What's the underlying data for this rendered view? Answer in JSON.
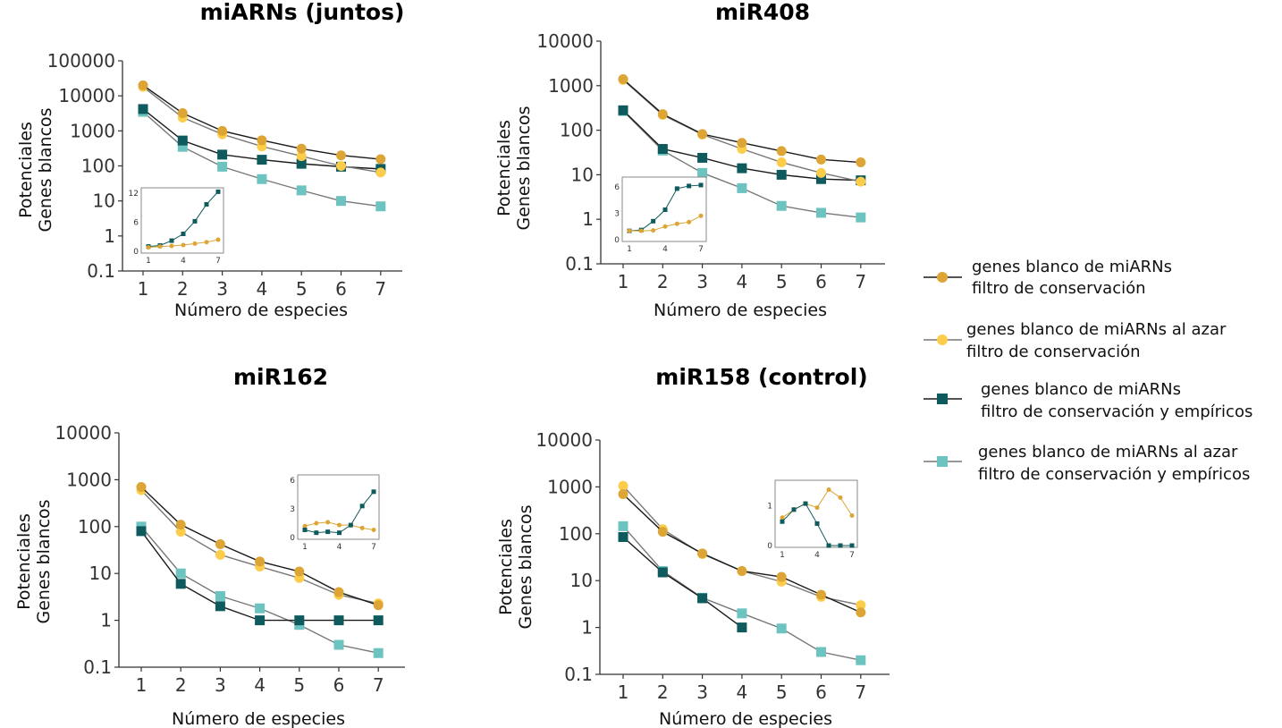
{
  "colors": {
    "series1": "#dda535",
    "series2": "#fbcd4b",
    "series3": "#0e5a5c",
    "series4": "#6cc3c0",
    "axis": "#333333"
  },
  "legend": {
    "items": [
      {
        "series": "series1",
        "marker": "circle",
        "line1": "genes blanco de miARNs",
        "line2": "filtro de conservación"
      },
      {
        "series": "series2",
        "marker": "circle",
        "line1": "genes blanco de miARNs al azar",
        "line2": "filtro de conservación"
      },
      {
        "series": "series3",
        "marker": "square",
        "line1": "genes blanco de miARNs",
        "line2": "filtro de conservación y empíricos"
      },
      {
        "series": "series4",
        "marker": "square",
        "line1": "genes blanco de miARNs al azar",
        "line2": "filtro de conservación y empíricos"
      }
    ]
  },
  "chart_data": [
    {
      "type": "line",
      "title": "miARNs (juntos)",
      "xlabel": "Número de especies",
      "ylabel": [
        "Potenciales",
        "Genes blancos"
      ],
      "yscale": "log",
      "ylim": [
        0.1,
        100000
      ],
      "yticks": [
        "0.1",
        "1",
        "10",
        "100",
        "1000",
        "10000",
        "100000"
      ],
      "x": [
        1,
        2,
        3,
        4,
        5,
        6,
        7
      ],
      "series": [
        {
          "color": "series1",
          "marker": "circle",
          "values": [
            20000,
            3200,
            1000,
            540,
            310,
            200,
            155
          ]
        },
        {
          "color": "series2",
          "marker": "circle",
          "values": [
            18000,
            2400,
            800,
            360,
            190,
            100,
            65
          ]
        },
        {
          "color": "series3",
          "marker": "square",
          "values": [
            4200,
            530,
            210,
            150,
            115,
            95,
            82
          ]
        },
        {
          "color": "series4",
          "marker": "square",
          "values": [
            3500,
            350,
            95,
            42,
            20,
            10,
            7
          ]
        }
      ],
      "inset": {
        "yticks": [
          "0",
          "6",
          "12"
        ],
        "ylim": [
          0,
          12
        ],
        "xticks": [
          "1",
          "4",
          "7"
        ],
        "series": [
          {
            "color": "series3",
            "marker": "square",
            "values": [
              1,
              1.2,
              2.2,
              3.6,
              6.2,
              9.7,
              12.3
            ]
          },
          {
            "color": "series1",
            "marker": "circle",
            "values": [
              0.8,
              1.0,
              1.1,
              1.3,
              1.6,
              1.9,
              2.4
            ]
          }
        ]
      }
    },
    {
      "type": "line",
      "title": "miR408",
      "xlabel": "Número de especies",
      "ylabel": [
        "Potenciales",
        "Genes blancos"
      ],
      "yscale": "log",
      "ylim": [
        0.1,
        10000
      ],
      "yticks": [
        "0.1",
        "1",
        "10",
        "100",
        "1000",
        "10000"
      ],
      "x": [
        1,
        2,
        3,
        4,
        5,
        6,
        7
      ],
      "series": [
        {
          "color": "series1",
          "marker": "circle",
          "values": [
            1400,
            230,
            82,
            52,
            34,
            22,
            19
          ]
        },
        {
          "color": "series2",
          "marker": "circle",
          "values": [
            1350,
            220,
            80,
            38,
            19,
            11,
            7
          ]
        },
        {
          "color": "series3",
          "marker": "square",
          "values": [
            280,
            38,
            24,
            14,
            10,
            8,
            7.5
          ]
        },
        {
          "color": "series4",
          "marker": "square",
          "values": [
            270,
            35,
            11,
            5,
            2,
            1.4,
            1.1
          ]
        }
      ],
      "inset": {
        "yticks": [
          "0",
          "3",
          "6"
        ],
        "ylim": [
          0,
          6.5
        ],
        "xticks": [
          "1",
          "4",
          "7"
        ],
        "series": [
          {
            "color": "series3",
            "marker": "square",
            "values": [
              1,
              1.1,
              2.1,
              3.4,
              5.8,
              6.1,
              6.2
            ]
          },
          {
            "color": "series1",
            "marker": "circle",
            "values": [
              1,
              1.0,
              1.05,
              1.5,
              1.8,
              2.0,
              2.7
            ]
          }
        ]
      }
    },
    {
      "type": "line",
      "title": "miR162",
      "xlabel": "Número de especies",
      "ylabel": [
        "Potenciales",
        "Genes blancos"
      ],
      "yscale": "log",
      "ylim": [
        0.1,
        10000
      ],
      "yticks": [
        "0.1",
        "1",
        "10",
        "100",
        "1000",
        "10000"
      ],
      "x": [
        1,
        2,
        3,
        4,
        5,
        6,
        7
      ],
      "series": [
        {
          "color": "series1",
          "marker": "circle",
          "values": [
            700,
            110,
            42,
            18,
            11,
            4,
            2.1
          ]
        },
        {
          "color": "series2",
          "marker": "circle",
          "values": [
            600,
            78,
            25,
            14,
            8,
            3.5,
            2.3
          ]
        },
        {
          "color": "series3",
          "marker": "square",
          "values": [
            80,
            6,
            2,
            1,
            1,
            1,
            1
          ]
        },
        {
          "color": "series4",
          "marker": "square",
          "values": [
            100,
            10,
            3.3,
            1.8,
            0.8,
            0.3,
            0.2
          ]
        }
      ],
      "inset": {
        "yticks": [
          "0",
          "3",
          "6"
        ],
        "ylim": [
          0,
          6
        ],
        "xticks": [
          "1",
          "4",
          "7"
        ],
        "series": [
          {
            "color": "series1",
            "marker": "circle",
            "values": [
              1.2,
              1.5,
              1.6,
              1.3,
              1.3,
              1.0,
              0.8
            ]
          },
          {
            "color": "series3",
            "marker": "square",
            "values": [
              0.8,
              0.5,
              0.6,
              0.5,
              1.3,
              3.3,
              4.8
            ]
          }
        ]
      }
    },
    {
      "type": "line",
      "title": "miR158 (control)",
      "xlabel": "Número de especies",
      "ylabel": [
        "Potenciales",
        "Genes blancos"
      ],
      "yscale": "log",
      "ylim": [
        0.1,
        10000
      ],
      "yticks": [
        "0.1",
        "1",
        "10",
        "100",
        "1000",
        "10000"
      ],
      "x": [
        1,
        2,
        3,
        4,
        5,
        6,
        7
      ],
      "series": [
        {
          "color": "series1",
          "marker": "circle",
          "values": [
            700,
            110,
            38,
            16,
            12,
            5,
            2.1
          ]
        },
        {
          "color": "series2",
          "marker": "circle",
          "values": [
            1050,
            125,
            37,
            16,
            9.5,
            4.5,
            3
          ]
        },
        {
          "color": "series3",
          "marker": "square",
          "values": [
            85,
            15,
            4.2,
            1,
            null,
            null,
            null
          ]
        },
        {
          "color": "series4",
          "marker": "square",
          "values": [
            145,
            16,
            4.3,
            2,
            0.95,
            0.3,
            0.2
          ]
        }
      ],
      "inset": {
        "yticks": [
          "0",
          "1"
        ],
        "ylim": [
          0,
          1.5
        ],
        "xticks": [
          "1",
          "4",
          "7"
        ],
        "series": [
          {
            "color": "series1",
            "marker": "circle",
            "values": [
              0.7,
              0.9,
              1.05,
              0.95,
              1.4,
              1.2,
              0.75
            ]
          },
          {
            "color": "series3",
            "marker": "square",
            "values": [
              0.6,
              0.9,
              1.05,
              0.55,
              0,
              0,
              0
            ]
          }
        ]
      }
    }
  ]
}
